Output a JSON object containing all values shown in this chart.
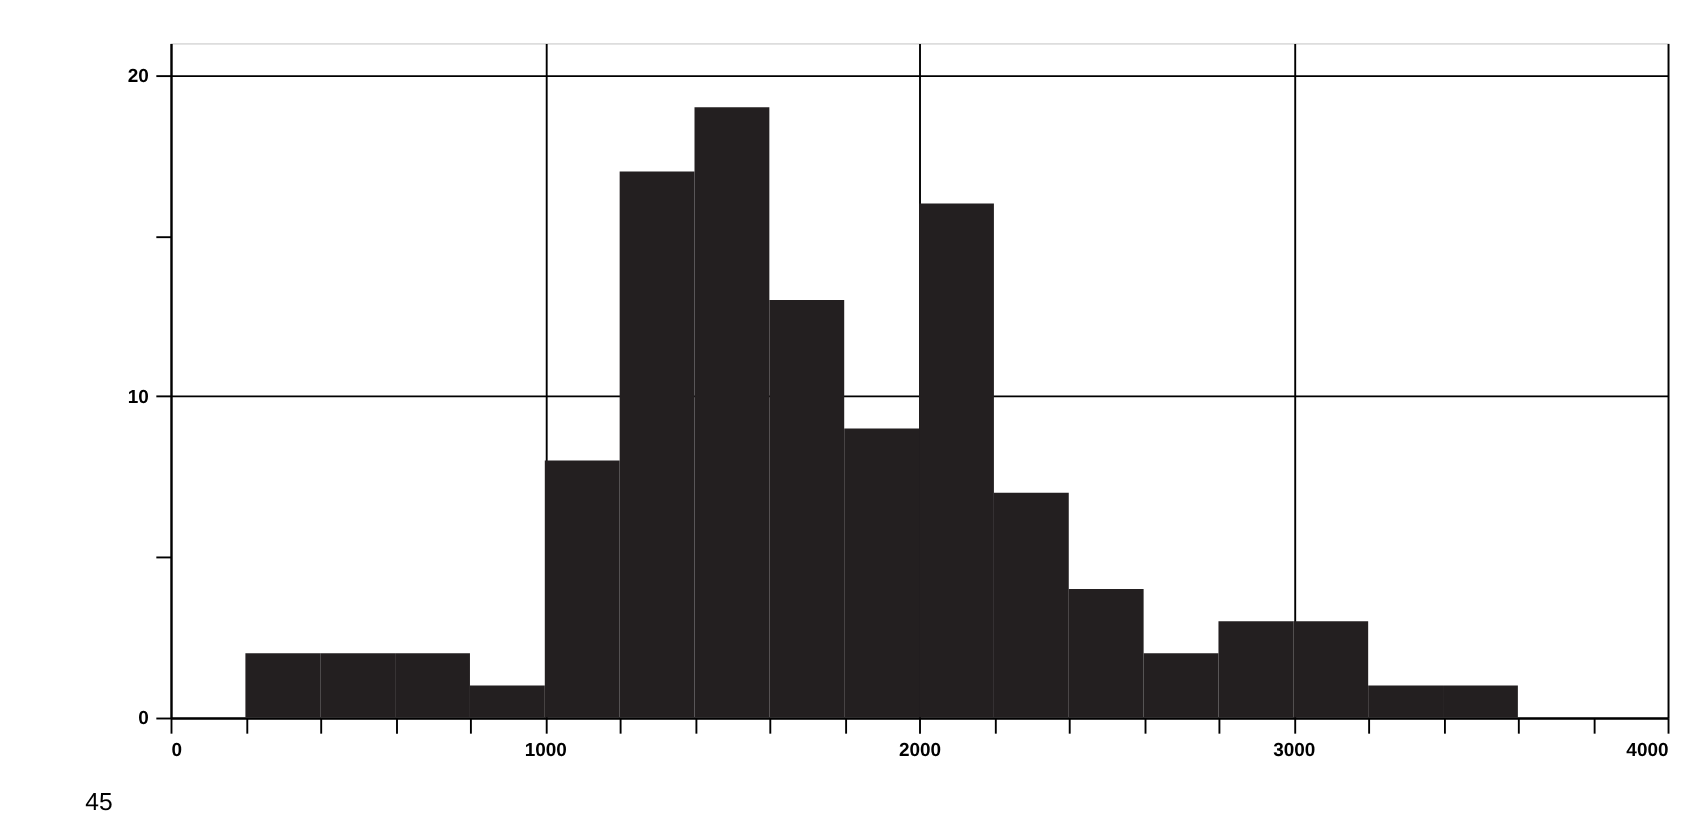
{
  "chart_data": {
    "type": "histogram",
    "bins": [
      200,
      400,
      600,
      800,
      1000,
      1200,
      1400,
      1600,
      1800,
      2000,
      2200,
      2400,
      2600,
      2800,
      3000,
      3200,
      3400,
      3600
    ],
    "values": [
      2,
      2,
      2,
      1,
      8,
      17,
      19,
      13,
      9,
      16,
      7,
      4,
      2,
      3,
      3,
      1,
      1
    ],
    "color": "#231f20",
    "xlim": [
      0,
      4000
    ],
    "xticks": [
      0,
      {
        "value": 200,
        "label": null
      },
      {
        "value": 400,
        "label": null
      },
      {
        "value": 600,
        "label": null
      },
      {
        "value": 800,
        "label": null
      },
      1000,
      {
        "value": 1200,
        "label": null
      },
      {
        "value": 1400,
        "label": null
      },
      {
        "value": 1600,
        "label": null
      },
      {
        "value": 1800,
        "label": null
      },
      2000,
      {
        "value": 2200,
        "label": null
      },
      {
        "value": 2400,
        "label": null
      },
      {
        "value": 2600,
        "label": null
      },
      {
        "value": 2800,
        "label": null
      },
      3000,
      {
        "value": 3200,
        "label": null
      },
      {
        "value": 3400,
        "label": null
      },
      {
        "value": 3600,
        "label": null
      },
      {
        "value": 3800,
        "label": null
      },
      4000
    ],
    "ylim": [
      0,
      21
    ],
    "yticks": [
      0,
      {
        "value": 5,
        "label": null
      },
      10,
      {
        "value": 15,
        "label": null
      },
      20
    ],
    "grid": true,
    "annotations": [
      "45"
    ]
  }
}
